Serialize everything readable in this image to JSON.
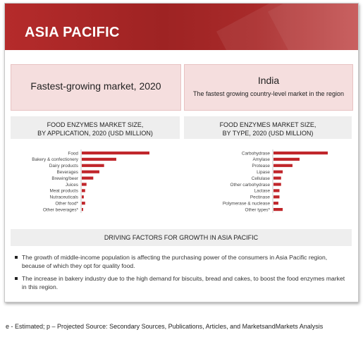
{
  "banner": {
    "title": "ASIA PACIFIC"
  },
  "highlights": {
    "left_text": "Fastest-growing  market, 2020",
    "right_title": "India",
    "right_subtitle": "The fastest growing country-level market in the  region"
  },
  "chart_data": [
    {
      "type": "bar",
      "orientation": "horizontal",
      "title_line1": "FOOD ENZYMES MARKET SIZE,",
      "title_line2": "BY APPLICATION, 2020 (USD MILLION)",
      "categories": [
        "Food",
        "Bakery & confectionery",
        "Dairy products",
        "Beverages",
        "Brewing/beer",
        "Juices",
        "Meat products",
        "Nutraceuticals",
        "Other food*",
        "Other beverages*"
      ],
      "values": [
        100,
        51,
        33,
        26,
        17,
        7,
        5,
        3,
        5,
        2
      ],
      "value_max": 100,
      "color": "#c0262b",
      "grid": false
    },
    {
      "type": "bar",
      "orientation": "horizontal",
      "title_line1": "FOOD ENZYMES MARKET SIZE,",
      "title_line2": "BY TYPE, 2020 (USD MILLION)",
      "categories": [
        "Carbohydrase",
        "Amylase",
        "Protease",
        "Lipase",
        "Cellulase",
        "Other carbohydrase",
        "Lactase",
        "Pectinase",
        "Polymerase & nuclease",
        "Other types*"
      ],
      "values": [
        100,
        48,
        35,
        17,
        14,
        14,
        11,
        11,
        9,
        17
      ],
      "value_max": 100,
      "color": "#c0262b",
      "grid": false
    }
  ],
  "drivers": {
    "title": "DRIVING FACTORS FOR GROWTH IN ASIA PACIFIC",
    "items": [
      "The growth of middle-income population is affecting the purchasing power of the consumers in Asia Pacific region, because of which they opt for quality food.",
      "The increase in bakery industry due to the high demand for biscuits, bread and cakes, to boost the food enzymes market in this region."
    ]
  },
  "footnote": "e - Estimated; p – Projected  Source: Secondary Sources, Publications, Articles, and MarketsandMarkets Analysis"
}
